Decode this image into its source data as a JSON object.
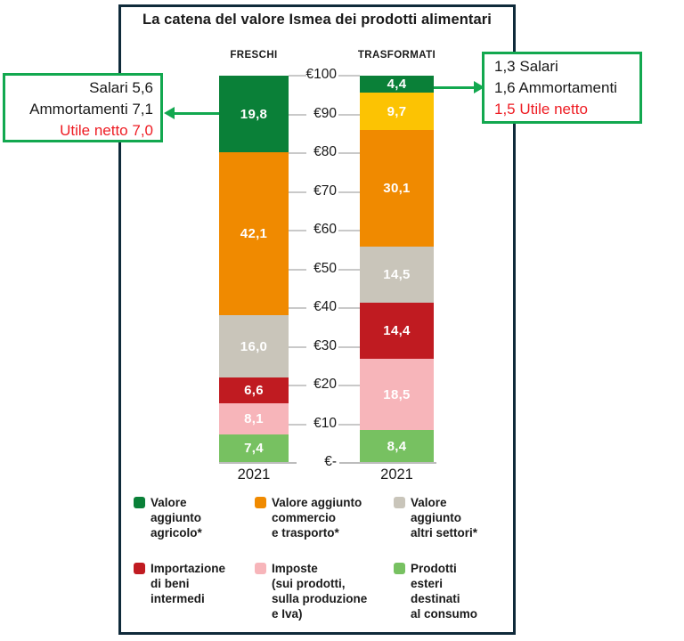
{
  "colors": {
    "frame": "#0f2a3a",
    "accent_green": "#12a84f",
    "accent_red": "#ee1c23",
    "text": "#1a1a1a",
    "grid": "#c9c9c9",
    "series": {
      "green": "#0a8038",
      "yellow": "#fcc303",
      "orange": "#f08a00",
      "gray": "#c9c5ba",
      "red": "#c01b21",
      "pink": "#f7b5ba",
      "lightgreen": "#77c161"
    }
  },
  "callout_left": {
    "lines": [
      "Salari 5,6",
      "Ammortamenti 7,1",
      "Utile netto 7,0"
    ]
  },
  "callout_right": {
    "lines": [
      "1,3 Salari",
      "1,6 Ammortamenti",
      "1,5 Utile netto"
    ]
  },
  "chart_data": {
    "type": "bar",
    "stacked": true,
    "title": "La catena del valore Ismea dei prodotti alimentari",
    "unit": "€",
    "ylim": [
      0,
      100
    ],
    "yticks": [
      {
        "label": "€100",
        "value": 100
      },
      {
        "label": "€90",
        "value": 90
      },
      {
        "label": "€80",
        "value": 80
      },
      {
        "label": "€70",
        "value": 70
      },
      {
        "label": "€60",
        "value": 60
      },
      {
        "label": "€50",
        "value": 50
      },
      {
        "label": "€40",
        "value": 40
      },
      {
        "label": "€30",
        "value": 30
      },
      {
        "label": "€20",
        "value": 20
      },
      {
        "label": "€10",
        "value": 10
      },
      {
        "label": "€-",
        "value": 0
      }
    ],
    "bars": [
      {
        "label": "FRESCHI",
        "year": "2021",
        "segments": [
          {
            "color_key": "green",
            "value": 19.8,
            "display": "19,8"
          },
          {
            "color_key": "orange",
            "value": 42.1,
            "display": "42,1"
          },
          {
            "color_key": "gray",
            "value": 16.0,
            "display": "16,0"
          },
          {
            "color_key": "red",
            "value": 6.6,
            "display": "6,6"
          },
          {
            "color_key": "pink",
            "value": 8.1,
            "display": "8,1"
          },
          {
            "color_key": "lightgreen",
            "value": 7.4,
            "display": "7,4"
          }
        ]
      },
      {
        "label": "TRASFORMATI",
        "year": "2021",
        "segments": [
          {
            "color_key": "green",
            "value": 4.4,
            "display": "4,4"
          },
          {
            "color_key": "yellow",
            "value": 9.7,
            "display": "9,7"
          },
          {
            "color_key": "orange",
            "value": 30.1,
            "display": "30,1"
          },
          {
            "color_key": "gray",
            "value": 14.5,
            "display": "14,5"
          },
          {
            "color_key": "red",
            "value": 14.4,
            "display": "14,4"
          },
          {
            "color_key": "pink",
            "value": 18.5,
            "display": "18,5"
          },
          {
            "color_key": "lightgreen",
            "value": 8.4,
            "display": "8,4"
          }
        ]
      }
    ],
    "legend": [
      {
        "color_key": "green",
        "lines": [
          "Valore",
          "aggiunto",
          "agricolo*"
        ]
      },
      {
        "color_key": "orange",
        "lines": [
          "Valore aggiunto",
          "commercio",
          "e trasporto*"
        ]
      },
      {
        "color_key": "gray",
        "lines": [
          "Valore",
          "aggiunto",
          "altri settori*"
        ]
      },
      {
        "color_key": "red",
        "lines": [
          "Importazione",
          "di beni",
          "intermedi"
        ]
      },
      {
        "color_key": "pink",
        "lines": [
          "Imposte",
          "(sui prodotti,",
          "sulla produzione",
          "e Iva)"
        ]
      },
      {
        "color_key": "lightgreen",
        "lines": [
          "Prodotti",
          "esteri",
          "destinati",
          "al consumo"
        ]
      }
    ]
  }
}
